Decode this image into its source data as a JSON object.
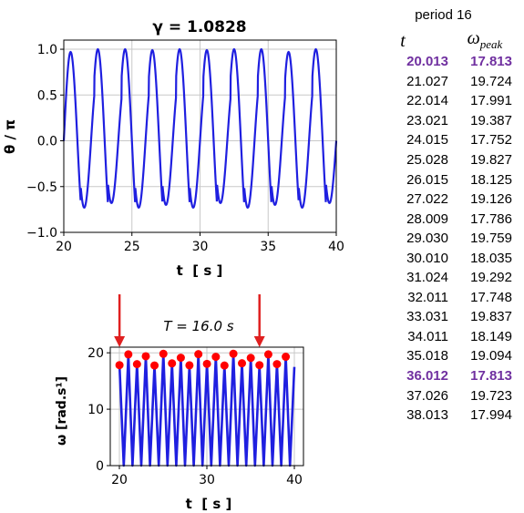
{
  "top_chart": {
    "title": "γ =  1.0828",
    "ylabel": "θ / π",
    "xlabel": "t  [ s ]",
    "xticks": [
      "20",
      "25",
      "30",
      "35",
      "40"
    ],
    "yticks": [
      "1.0",
      "0.5",
      "0.0",
      "−0.5",
      "−1.0"
    ]
  },
  "bottom_chart": {
    "annotation": "T = 16.0 s",
    "ylabel": "ω [rad.s¹]",
    "xlabel": "t  [ s ]",
    "xticks": [
      "20",
      "30",
      "40"
    ],
    "yticks": [
      "20",
      "10",
      "0"
    ]
  },
  "table": {
    "title": "period 16",
    "col_t": "t",
    "col_w": "ω",
    "col_w_sub": "peak",
    "rows": [
      {
        "t": "20.013",
        "w": "17.813",
        "highlight": true
      },
      {
        "t": "21.027",
        "w": "19.724",
        "highlight": false
      },
      {
        "t": "22.014",
        "w": "17.991",
        "highlight": false
      },
      {
        "t": "23.021",
        "w": "19.387",
        "highlight": false
      },
      {
        "t": "24.015",
        "w": "17.752",
        "highlight": false
      },
      {
        "t": "25.028",
        "w": "19.827",
        "highlight": false
      },
      {
        "t": "26.015",
        "w": "18.125",
        "highlight": false
      },
      {
        "t": "27.022",
        "w": "19.126",
        "highlight": false
      },
      {
        "t": "28.009",
        "w": "17.786",
        "highlight": false
      },
      {
        "t": "29.030",
        "w": "19.759",
        "highlight": false
      },
      {
        "t": "30.010",
        "w": "18.035",
        "highlight": false
      },
      {
        "t": "31.024",
        "w": "19.292",
        "highlight": false
      },
      {
        "t": "32.011",
        "w": "17.748",
        "highlight": false
      },
      {
        "t": "33.031",
        "w": "19.837",
        "highlight": false
      },
      {
        "t": "34.011",
        "w": "18.149",
        "highlight": false
      },
      {
        "t": "35.018",
        "w": "19.094",
        "highlight": false
      },
      {
        "t": "36.012",
        "w": "17.813",
        "highlight": true
      },
      {
        "t": "37.026",
        "w": "19.723",
        "highlight": false
      },
      {
        "t": "38.013",
        "w": "17.994",
        "highlight": false
      }
    ]
  },
  "colors": {
    "line": "#1f1fe0",
    "marker": "#ff0000",
    "arrow": "#e02020",
    "highlight": "#7030a0",
    "grid": "#c8c8c8"
  },
  "chart_data": [
    {
      "type": "line",
      "title": "γ =  1.0828",
      "xlabel": "t  [ s ]",
      "ylabel": "θ / π",
      "xlim": [
        20,
        40
      ],
      "ylim": [
        -1.0,
        1.1
      ],
      "grid": true,
      "series": [
        {
          "x": [
            20.0,
            20.5,
            21.0,
            21.5,
            22.0,
            22.5,
            23.0,
            23.5,
            24.0,
            24.5,
            25.0,
            25.5,
            26.0,
            26.5,
            27.0,
            27.5,
            28.0,
            28.5,
            29.0,
            29.5,
            30.0,
            30.5,
            31.0,
            31.5,
            32.0,
            32.5,
            33.0,
            33.5,
            34.0,
            34.5,
            35.0,
            35.5,
            36.0,
            36.5,
            37.0,
            37.5,
            38.0,
            38.5,
            39.0,
            39.5,
            40.0
          ],
          "y": [
            0.0,
            0.97,
            0.0,
            -0.73,
            0.0,
            1.0,
            0.0,
            -0.68,
            0.0,
            1.0,
            0.0,
            -0.73,
            0.0,
            0.99,
            0.0,
            -0.7,
            0.0,
            1.0,
            0.0,
            -0.73,
            0.0,
            0.99,
            0.0,
            -0.68,
            0.0,
            1.0,
            0.0,
            -0.73,
            0.0,
            1.0,
            0.0,
            -0.7,
            0.0,
            0.97,
            0.0,
            -0.73,
            0.0,
            1.0,
            0.0,
            -0.68,
            0.0
          ]
        }
      ]
    },
    {
      "type": "line",
      "xlabel": "t  [ s ]",
      "ylabel": "ω [rad.s¹]",
      "xlim": [
        20,
        40
      ],
      "ylim": [
        0,
        21
      ],
      "grid": true,
      "annotation": "T = 16.0 s",
      "arrows_at_t": [
        20.013,
        36.012
      ],
      "series": [
        {
          "t_peak": [
            20.013,
            21.027,
            22.014,
            23.021,
            24.015,
            25.028,
            26.015,
            27.022,
            28.009,
            29.03,
            30.01,
            31.024,
            32.011,
            33.031,
            34.011,
            35.018,
            36.012,
            37.026,
            38.013,
            39.02
          ],
          "w_peak": [
            17.813,
            19.724,
            17.991,
            19.387,
            17.752,
            19.827,
            18.125,
            19.126,
            17.786,
            19.759,
            18.035,
            19.292,
            17.748,
            19.837,
            18.149,
            19.094,
            17.813,
            19.723,
            17.994,
            19.3
          ],
          "t_zero": [
            20.5,
            21.5,
            22.5,
            23.5,
            24.5,
            25.5,
            26.5,
            27.5,
            28.5,
            29.5,
            30.5,
            31.5,
            32.5,
            33.5,
            34.5,
            35.5,
            36.5,
            37.5,
            38.5,
            39.5
          ],
          "w_zero": [
            0,
            0,
            0,
            0,
            0,
            0,
            0,
            0,
            0,
            0,
            0,
            0,
            0,
            0,
            0,
            0,
            0,
            0,
            0,
            0
          ],
          "w_end": 17.5
        }
      ]
    }
  ]
}
